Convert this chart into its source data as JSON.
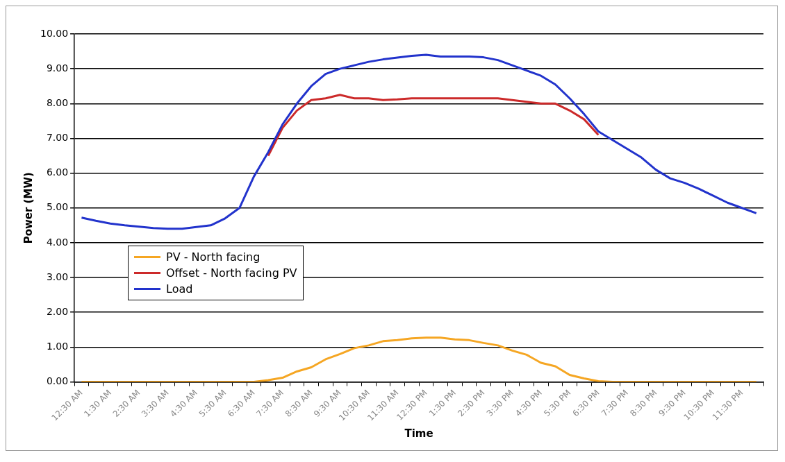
{
  "chart_data": {
    "type": "line",
    "xlabel": "Time",
    "ylabel": "Power (MW)",
    "categories": [
      "12:30 AM",
      null,
      "1:30 AM",
      null,
      "2:30 AM",
      null,
      "3:30 AM",
      null,
      "4:30 AM",
      null,
      "5:30 AM",
      null,
      "6:30 AM",
      null,
      "7:30 AM",
      null,
      "8:30 AM",
      null,
      "9:30 AM",
      null,
      "10:30 AM",
      null,
      "11:30 AM",
      null,
      "12:30 PM",
      null,
      "1:30 PM",
      null,
      "2:30 PM",
      null,
      "3:30 PM",
      null,
      "4:30 PM",
      null,
      "5:30 PM",
      null,
      "6:30 PM",
      null,
      "7:30 PM",
      null,
      "8:30 PM",
      null,
      "9:30 PM",
      null,
      "10:30 PM",
      null,
      "11:30 PM",
      null
    ],
    "series": [
      {
        "name": "PV - North facing",
        "color": "#f5a623",
        "values": [
          0,
          0,
          0,
          0,
          0,
          0,
          0,
          0,
          0,
          0,
          0,
          0,
          0,
          0.05,
          0.12,
          0.3,
          0.42,
          0.65,
          0.8,
          0.97,
          1.05,
          1.17,
          1.2,
          1.25,
          1.27,
          1.27,
          1.22,
          1.2,
          1.12,
          1.05,
          0.9,
          0.78,
          0.55,
          0.45,
          0.2,
          0.1,
          0.02,
          0,
          0,
          0,
          0,
          0,
          0,
          0,
          0,
          0,
          0,
          0
        ]
      },
      {
        "name": "Offset - North facing PV",
        "color": "#cc2a2a",
        "values": [
          null,
          null,
          null,
          null,
          null,
          null,
          null,
          null,
          null,
          null,
          null,
          null,
          null,
          6.5,
          7.3,
          7.8,
          8.1,
          8.15,
          8.25,
          8.15,
          8.15,
          8.1,
          8.12,
          8.15,
          8.15,
          8.15,
          8.15,
          8.15,
          8.15,
          8.15,
          8.1,
          8.05,
          8.0,
          8.0,
          7.8,
          7.55,
          7.1,
          null,
          null,
          null,
          null,
          null,
          null,
          null,
          null,
          null,
          null,
          null
        ]
      },
      {
        "name": "Load",
        "color": "#2233cc",
        "values": [
          4.72,
          4.63,
          4.55,
          4.5,
          4.46,
          4.42,
          4.4,
          4.4,
          4.45,
          4.5,
          4.7,
          5.0,
          5.9,
          6.6,
          7.4,
          8.0,
          8.5,
          8.85,
          9.0,
          9.1,
          9.2,
          9.27,
          9.32,
          9.37,
          9.4,
          9.35,
          9.35,
          9.35,
          9.33,
          9.25,
          9.1,
          8.95,
          8.8,
          8.55,
          8.15,
          7.7,
          7.2,
          6.95,
          6.7,
          6.45,
          6.1,
          5.85,
          5.72,
          5.55,
          5.35,
          5.15,
          5.0,
          4.85
        ]
      }
    ],
    "ylim": [
      0,
      10
    ],
    "yticks": [
      {
        "value": 0,
        "label": "0.00"
      },
      {
        "value": 1,
        "label": "1.00"
      },
      {
        "value": 2,
        "label": "2.00"
      },
      {
        "value": 3,
        "label": "3.00"
      },
      {
        "value": 4,
        "label": "4.00"
      },
      {
        "value": 5,
        "label": "5.00"
      },
      {
        "value": 6,
        "label": "6.00"
      },
      {
        "value": 7,
        "label": "7.00"
      },
      {
        "value": 8,
        "label": "8.00"
      },
      {
        "value": 9,
        "label": "9.00"
      },
      {
        "value": 10,
        "label": "10.00"
      }
    ],
    "grid": "y",
    "legend": "left",
    "marker": "none",
    "line_style": "solid"
  }
}
